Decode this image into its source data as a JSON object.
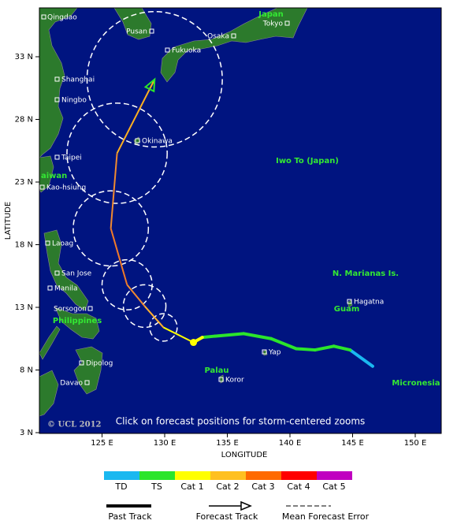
{
  "map": {
    "axes": {
      "x_label": "LONGITUDE",
      "y_label": "LATITUDE",
      "xticks": [
        {
          "value": 125,
          "label": "125 E"
        },
        {
          "value": 130,
          "label": "130 E"
        },
        {
          "value": 135,
          "label": "135 E"
        },
        {
          "value": 140,
          "label": "140 E"
        },
        {
          "value": 145,
          "label": "145 E"
        },
        {
          "value": 150,
          "label": "150 E"
        }
      ],
      "yticks": [
        {
          "value": 33,
          "label": "33 N"
        },
        {
          "value": 28,
          "label": "28 N"
        },
        {
          "value": 23,
          "label": "23 N"
        },
        {
          "value": 18,
          "label": "18 N"
        },
        {
          "value": 13,
          "label": "13 N"
        },
        {
          "value": 8,
          "label": "8 N"
        },
        {
          "value": 3,
          "label": "3 N"
        }
      ]
    },
    "cities": [
      "Qingdao",
      "Pusan",
      "Tokyo",
      "Osaka",
      "Fukuoka",
      "Shanghai",
      "Ningbo",
      "Okinawa",
      "Taipei",
      "Kao-hsiung",
      "Laoag",
      "San Jose",
      "Manila",
      "Sorsogon",
      "Dipolog",
      "Davao",
      "Hagatna",
      "Yap",
      "Koror"
    ],
    "regions": [
      "Japan",
      "Iwo To (Japan)",
      "aiwan",
      "N. Marianas Is.",
      "Guam",
      "Philippines",
      "Palau",
      "Micronesia"
    ],
    "notice": "Click on forecast positions for storm-centered zooms",
    "copyright": "© UCL 2012",
    "past_track": [
      {
        "lon": 146.6,
        "lat": 8.3,
        "color": "#1ab8f0"
      },
      {
        "lon": 144.8,
        "lat": 9.6,
        "color": "#1ab8f0"
      },
      {
        "lon": 143.5,
        "lat": 9.9,
        "color": "#2be52b"
      },
      {
        "lon": 142.0,
        "lat": 9.6,
        "color": "#2be52b"
      },
      {
        "lon": 140.5,
        "lat": 9.7,
        "color": "#2be52b"
      },
      {
        "lon": 138.5,
        "lat": 10.5,
        "color": "#2be52b"
      },
      {
        "lon": 136.3,
        "lat": 10.9,
        "color": "#2be52b"
      },
      {
        "lon": 134.0,
        "lat": 10.7,
        "color": "#2be52b"
      },
      {
        "lon": 133.0,
        "lat": 10.6,
        "color": "#2be52b"
      },
      {
        "lon": 132.3,
        "lat": 10.2,
        "color": "#ffff00"
      }
    ],
    "forecast_track": [
      {
        "lon": 129.9,
        "lat": 11.4,
        "color": "#ffff00",
        "error": 1.1
      },
      {
        "lon": 128.4,
        "lat": 13.1,
        "color": "#ffb030",
        "error": 1.7
      },
      {
        "lon": 127.0,
        "lat": 14.8,
        "color": "#f08a30",
        "error": 2.0
      },
      {
        "lon": 125.7,
        "lat": 19.3,
        "color": "#f07a28",
        "error": 3.0
      },
      {
        "lon": 126.2,
        "lat": 25.3,
        "color": "#f08a30",
        "error": 4.0
      },
      {
        "lon": 129.2,
        "lat": 31.2,
        "color": "#ffb020",
        "error": 5.4
      }
    ],
    "legend": {
      "categories": [
        {
          "label": "TD",
          "color": "#1ab8f0"
        },
        {
          "label": "TS",
          "color": "#2be52b"
        },
        {
          "label": "Cat 1",
          "color": "#ffff00"
        },
        {
          "label": "Cat 2",
          "color": "#ffc020"
        },
        {
          "label": "Cat 3",
          "color": "#ff6a00"
        },
        {
          "label": "Cat 4",
          "color": "#ff0000"
        },
        {
          "label": "Cat 5",
          "color": "#c000c0"
        }
      ],
      "past_track": "Past Track",
      "forecast_track": "Forecast Track",
      "mean_error": "Mean Forecast Error"
    }
  }
}
